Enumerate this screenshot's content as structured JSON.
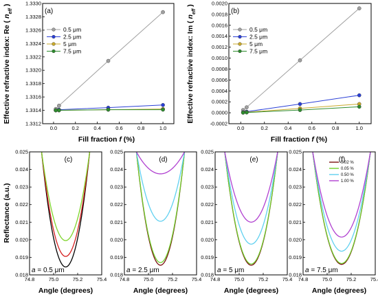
{
  "chart_data": [
    {
      "type": "line",
      "panel_label": "(a)",
      "xlabel_prefix": "Fill fraction ",
      "xlabel_italic": "f",
      "xlabel_suffix": " (%)",
      "ylabel_prefix": "Effective refractive index:  Re ( ",
      "ylabel_italic": "n",
      "ylabel_sub": "eff",
      "ylabel_suffix": " )",
      "xlim": [
        -0.1,
        1.1
      ],
      "ylim": [
        1.3312,
        1.333
      ],
      "xticks": [
        "0.0",
        "0.2",
        "0.4",
        "0.6",
        "0.8",
        "1.0"
      ],
      "yticks": [
        "1.3312",
        "1.3314",
        "1.3316",
        "1.3318",
        "1.3320",
        "1.3322",
        "1.3324",
        "1.3326",
        "1.3328",
        "1.3330"
      ],
      "x": [
        0.02,
        0.05,
        0.5,
        1.0
      ],
      "series": [
        {
          "name": "0.5 μm",
          "color": "#a0a0a0",
          "values": [
            1.33142,
            1.33147,
            1.33214,
            1.33287
          ]
        },
        {
          "name": "2.5 μm",
          "color": "#2a3fd6",
          "values": [
            1.3314,
            1.33141,
            1.33144,
            1.33148
          ]
        },
        {
          "name": "5 μm",
          "color": "#c9a92a",
          "values": [
            1.3314,
            1.3314,
            1.33141,
            1.33142
          ]
        },
        {
          "name": "7.5 μm",
          "color": "#2e8b2e",
          "values": [
            1.3314,
            1.3314,
            1.33141,
            1.33141
          ]
        }
      ],
      "legend_position": "top-left"
    },
    {
      "type": "line",
      "panel_label": "(b)",
      "xlabel_prefix": "Fill fraction ",
      "xlabel_italic": "f",
      "xlabel_suffix": " (%)",
      "ylabel_prefix": "Effective refractive index:  Im ( ",
      "ylabel_italic": "n",
      "ylabel_sub": "eff",
      "ylabel_suffix": " )",
      "xlim": [
        -0.1,
        1.1
      ],
      "ylim": [
        -0.0002,
        0.002
      ],
      "xticks": [
        "0.0",
        "0.2",
        "0.4",
        "0.6",
        "0.8",
        "1.0"
      ],
      "yticks": [
        "-0.0002",
        "0.0000",
        "0.0002",
        "0.0004",
        "0.0006",
        "0.0008",
        "0.0010",
        "0.0012",
        "0.0014",
        "0.0016",
        "0.0018",
        "0.0020"
      ],
      "x": [
        0.02,
        0.05,
        0.5,
        1.0
      ],
      "series": [
        {
          "name": "0.5 μm",
          "color": "#a0a0a0",
          "values": [
            5e-05,
            0.0001,
            0.00096,
            0.00191
          ]
        },
        {
          "name": "2.5 μm",
          "color": "#2a3fd6",
          "values": [
            1e-05,
            2e-05,
            0.00016,
            0.00032
          ]
        },
        {
          "name": "5 μm",
          "color": "#c9a92a",
          "values": [
            3e-06,
            1e-05,
            8e-05,
            0.00016
          ]
        },
        {
          "name": "7.5 μm",
          "color": "#2e8b2e",
          "values": [
            2e-06,
            5e-06,
            5e-05,
            0.00011
          ]
        }
      ],
      "legend_position": "top-left"
    }
  ],
  "bottom": {
    "ylabel": "Reflectance (a.u.)",
    "xlabel": "Angle (degrees)",
    "xlim": [
      74.8,
      75.4
    ],
    "ylim": [
      0.018,
      0.025
    ],
    "xticks": [
      "74.8",
      "75.0",
      "75.2",
      "75.4"
    ],
    "yticks": [
      "0.018",
      "0.019",
      "0.020",
      "0.021",
      "0.022",
      "0.023",
      "0.024",
      "0.025"
    ],
    "legend": [
      {
        "name": "0.02 %",
        "color": "#7a1010"
      },
      {
        "name": "0.05 %",
        "color": "#6ecf2a"
      },
      {
        "name": "0.50 %",
        "color": "#5fd0f0"
      },
      {
        "name": "1.00 %",
        "color": "#b040d0"
      }
    ],
    "panels": [
      {
        "label": "(c)",
        "size_var": "a",
        "size_text": " = 0.5 μm",
        "curves": [
          {
            "color": "#000000",
            "min_x": 75.1,
            "min_y": 0.01845,
            "width": 0.2
          },
          {
            "color": "#d42020",
            "min_x": 75.1,
            "min_y": 0.01905,
            "width": 0.2
          },
          {
            "color": "#7ed42a",
            "min_x": 75.1,
            "min_y": 0.01995,
            "width": 0.2
          }
        ]
      },
      {
        "label": "(d)",
        "size_var": "a",
        "size_text": " = 2.5 μm",
        "curves": [
          {
            "color": "#7a1010",
            "min_x": 75.1,
            "min_y": 0.01855,
            "width": 0.2
          },
          {
            "color": "#6ecf2a",
            "min_x": 75.1,
            "min_y": 0.0187,
            "width": 0.2
          },
          {
            "color": "#5fd0f0",
            "min_x": 75.1,
            "min_y": 0.02105,
            "width": 0.2
          },
          {
            "color": "#b040d0",
            "min_x": 75.1,
            "min_y": 0.02375,
            "width": 0.2
          }
        ]
      },
      {
        "label": "(e)",
        "size_var": "a",
        "size_text": " = 5 μm",
        "curves": [
          {
            "color": "#7a1010",
            "min_x": 75.1,
            "min_y": 0.01855,
            "width": 0.22
          },
          {
            "color": "#6ecf2a",
            "min_x": 75.1,
            "min_y": 0.01862,
            "width": 0.22
          },
          {
            "color": "#5fd0f0",
            "min_x": 75.1,
            "min_y": 0.01975,
            "width": 0.22
          },
          {
            "color": "#b040d0",
            "min_x": 75.1,
            "min_y": 0.021,
            "width": 0.22
          }
        ]
      },
      {
        "label": "(f)",
        "size_var": "a",
        "size_text": " = 7.5 μm",
        "curves": [
          {
            "color": "#7a1010",
            "min_x": 75.12,
            "min_y": 0.0186,
            "width": 0.24
          },
          {
            "color": "#6ecf2a",
            "min_x": 75.12,
            "min_y": 0.01865,
            "width": 0.24
          },
          {
            "color": "#5fd0f0",
            "min_x": 75.12,
            "min_y": 0.01935,
            "width": 0.24
          },
          {
            "color": "#b040d0",
            "min_x": 75.12,
            "min_y": 0.02015,
            "width": 0.24
          }
        ]
      }
    ]
  }
}
